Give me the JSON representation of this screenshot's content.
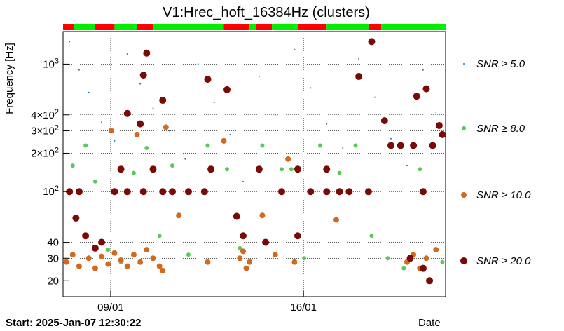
{
  "chart_data": {
    "type": "scatter",
    "title": "V1:Hrec_hoft_16384Hz (clusters)",
    "xlabel": "Date",
    "ylabel": "Frequency [Hz]",
    "start_label": "Start: 2025-Jan-07 12:30:22",
    "x_unit": "days after start",
    "xlim": [
      0,
      11.9
    ],
    "y_scale": "log",
    "ylim": [
      15,
      1800
    ],
    "y_ticks": [
      {
        "value": 20,
        "label": "20"
      },
      {
        "value": 30,
        "label": "30"
      },
      {
        "value": 40,
        "label": "40"
      },
      {
        "value": 100,
        "label": "10^2"
      },
      {
        "value": 200,
        "label": "2×10^2"
      },
      {
        "value": 300,
        "label": "3×10^2"
      },
      {
        "value": 400,
        "label": "4×10^2"
      },
      {
        "value": 1000,
        "label": "10^3"
      }
    ],
    "x_ticks": [
      {
        "value": 1.48,
        "label": "09/01"
      },
      {
        "value": 7.48,
        "label": "16/01"
      }
    ],
    "grid": true,
    "legend_position": "right",
    "series": [
      {
        "name": "SNR ≥ 5.0",
        "color": "#1f77b4",
        "marker_size": 1,
        "points": [
          [
            0.2,
            1500
          ],
          [
            0.5,
            900
          ],
          [
            0.8,
            600
          ],
          [
            1.2,
            350
          ],
          [
            1.6,
            250
          ],
          [
            2.0,
            1200
          ],
          [
            2.4,
            700
          ],
          [
            2.8,
            450
          ],
          [
            3.3,
            300
          ],
          [
            3.8,
            180
          ],
          [
            4.2,
            1000
          ],
          [
            4.7,
            500
          ],
          [
            5.2,
            280
          ],
          [
            5.6,
            120
          ],
          [
            6.1,
            800
          ],
          [
            6.6,
            400
          ],
          [
            7.2,
            1300
          ],
          [
            7.7,
            650
          ],
          [
            8.2,
            340
          ],
          [
            8.7,
            220
          ],
          [
            9.2,
            1100
          ],
          [
            9.7,
            550
          ],
          [
            10.2,
            260
          ],
          [
            10.7,
            160
          ],
          [
            11.2,
            900
          ],
          [
            11.6,
            420
          ]
        ]
      },
      {
        "name": "SNR ≥ 8.0",
        "color": "#5cc85c",
        "marker_size": 3,
        "points": [
          [
            0.3,
            160
          ],
          [
            0.7,
            230
          ],
          [
            1.0,
            120
          ],
          [
            1.4,
            35
          ],
          [
            1.8,
            28
          ],
          [
            2.2,
            140
          ],
          [
            2.6,
            220
          ],
          [
            3.0,
            45
          ],
          [
            3.4,
            160
          ],
          [
            3.9,
            32
          ],
          [
            4.5,
            230
          ],
          [
            5.1,
            150
          ],
          [
            5.5,
            36
          ],
          [
            6.2,
            230
          ],
          [
            6.8,
            150
          ],
          [
            7.1,
            150
          ],
          [
            7.5,
            30
          ],
          [
            8.0,
            230
          ],
          [
            8.6,
            140
          ],
          [
            9.1,
            230
          ],
          [
            9.6,
            45
          ],
          [
            10.1,
            30
          ],
          [
            10.6,
            25
          ],
          [
            11.1,
            150
          ],
          [
            11.5,
            230
          ],
          [
            11.8,
            28
          ]
        ]
      },
      {
        "name": "SNR ≥ 10.0",
        "color": "#d2691e",
        "marker_size": 4,
        "points": [
          [
            0.1,
            28
          ],
          [
            0.3,
            32
          ],
          [
            0.5,
            26
          ],
          [
            0.8,
            30
          ],
          [
            1.0,
            25
          ],
          [
            1.2,
            31
          ],
          [
            1.4,
            27
          ],
          [
            1.6,
            33
          ],
          [
            1.8,
            29
          ],
          [
            2.0,
            26
          ],
          [
            2.2,
            32
          ],
          [
            2.4,
            28
          ],
          [
            2.6,
            35
          ],
          [
            2.8,
            30
          ],
          [
            3.0,
            26
          ],
          [
            3.1,
            24
          ],
          [
            1.5,
            300
          ],
          [
            2.3,
            280
          ],
          [
            3.2,
            320
          ],
          [
            3.6,
            65
          ],
          [
            4.5,
            28
          ],
          [
            5.0,
            250
          ],
          [
            5.5,
            30
          ],
          [
            5.6,
            34
          ],
          [
            5.7,
            25
          ],
          [
            5.8,
            28
          ],
          [
            6.2,
            65
          ],
          [
            6.6,
            32
          ],
          [
            7.0,
            180
          ],
          [
            7.2,
            28
          ],
          [
            8.5,
            60
          ],
          [
            10.7,
            28
          ],
          [
            10.9,
            32
          ],
          [
            11.1,
            25
          ],
          [
            11.3,
            30
          ],
          [
            11.6,
            35
          ]
        ]
      },
      {
        "name": "SNR ≥ 20.0",
        "color": "#7a0a05",
        "marker_size": 5,
        "points": [
          [
            0.2,
            100
          ],
          [
            0.5,
            100
          ],
          [
            0.4,
            62
          ],
          [
            0.7,
            45
          ],
          [
            1.0,
            36
          ],
          [
            1.2,
            40
          ],
          [
            1.6,
            100
          ],
          [
            2.0,
            100
          ],
          [
            2.5,
            100
          ],
          [
            3.1,
            100
          ],
          [
            3.4,
            100
          ],
          [
            3.9,
            100
          ],
          [
            4.4,
            100
          ],
          [
            2.0,
            410
          ],
          [
            2.4,
            340
          ],
          [
            2.6,
            1220
          ],
          [
            2.5,
            820
          ],
          [
            3.1,
            520
          ],
          [
            4.5,
            760
          ],
          [
            5.1,
            630
          ],
          [
            5.4,
            64
          ],
          [
            5.6,
            45
          ],
          [
            6.3,
            40
          ],
          [
            6.8,
            100
          ],
          [
            7.3,
            45
          ],
          [
            7.7,
            100
          ],
          [
            8.2,
            100
          ],
          [
            8.6,
            100
          ],
          [
            8.9,
            100
          ],
          [
            9.5,
            100
          ],
          [
            10.0,
            360
          ],
          [
            10.2,
            230
          ],
          [
            10.5,
            230
          ],
          [
            10.9,
            230
          ],
          [
            11.2,
            100
          ],
          [
            11.5,
            230
          ],
          [
            11.7,
            330
          ],
          [
            11.8,
            280
          ],
          [
            11.0,
            560
          ],
          [
            11.3,
            640
          ],
          [
            10.8,
            30
          ],
          [
            11.2,
            25
          ],
          [
            11.4,
            20
          ],
          [
            9.2,
            800
          ],
          [
            9.6,
            1500
          ],
          [
            1.8,
            150
          ],
          [
            2.8,
            150
          ],
          [
            4.6,
            150
          ],
          [
            6.1,
            150
          ],
          [
            7.3,
            150
          ],
          [
            8.2,
            150
          ]
        ]
      }
    ],
    "quality_bar": {
      "colors": {
        "good": "#00ee00",
        "bad": "#ff0000",
        "unknown": "#7a0a05"
      },
      "segments": [
        {
          "start": 0.0,
          "end": 0.35,
          "state": "bad"
        },
        {
          "start": 0.35,
          "end": 1.0,
          "state": "good"
        },
        {
          "start": 1.0,
          "end": 1.6,
          "state": "bad"
        },
        {
          "start": 1.6,
          "end": 2.3,
          "state": "good"
        },
        {
          "start": 2.3,
          "end": 2.8,
          "state": "bad"
        },
        {
          "start": 2.8,
          "end": 5.0,
          "state": "good"
        },
        {
          "start": 5.0,
          "end": 5.8,
          "state": "bad"
        },
        {
          "start": 5.8,
          "end": 6.0,
          "state": "good"
        },
        {
          "start": 6.0,
          "end": 6.5,
          "state": "bad"
        },
        {
          "start": 6.5,
          "end": 7.3,
          "state": "good"
        },
        {
          "start": 7.3,
          "end": 8.2,
          "state": "bad"
        },
        {
          "start": 8.2,
          "end": 9.5,
          "state": "good"
        },
        {
          "start": 9.5,
          "end": 9.9,
          "state": "bad"
        },
        {
          "start": 9.9,
          "end": 11.9,
          "state": "good"
        }
      ]
    }
  }
}
